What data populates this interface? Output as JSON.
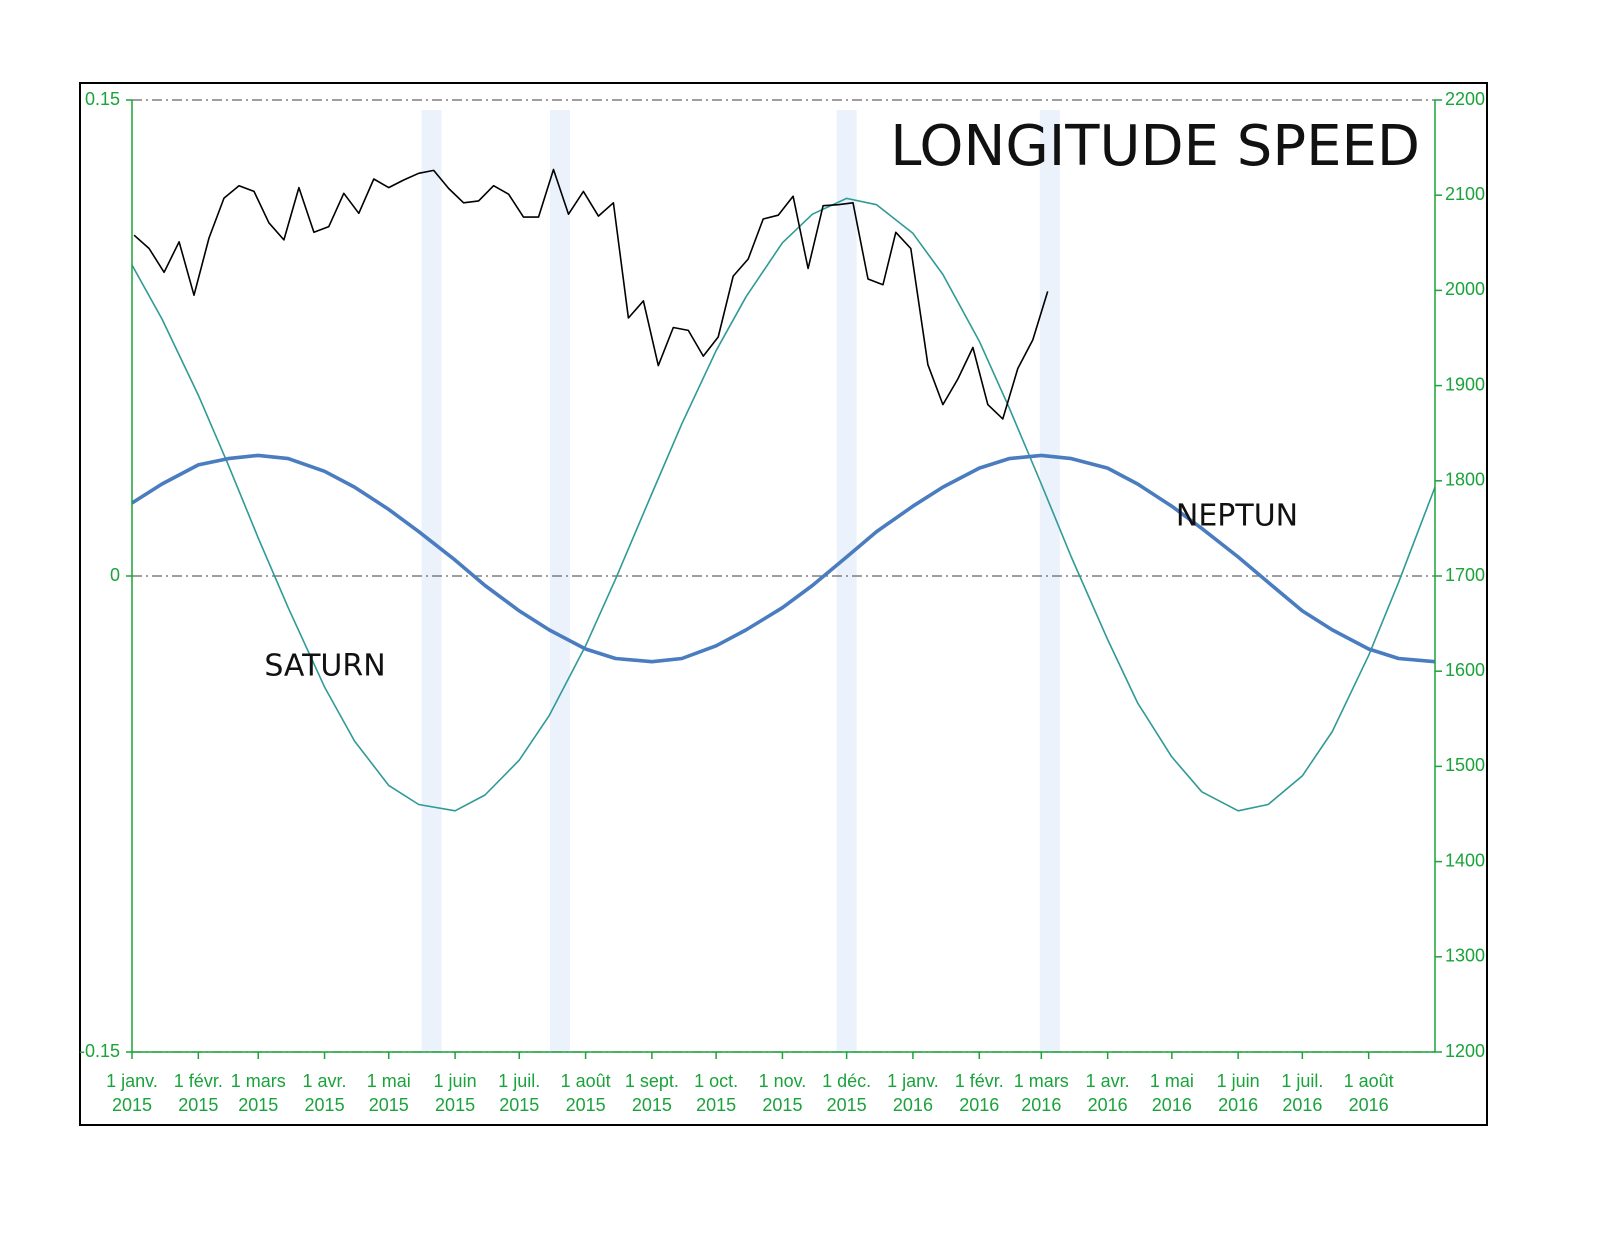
{
  "chart_data": {
    "type": "line",
    "title": "LONGITUDE SPEED",
    "xlim": [
      "2015-01-01",
      "2016-09-01"
    ],
    "xticks": [
      {
        "value": "2015-01-01",
        "label": "1 janv. 2015"
      },
      {
        "value": "2015-02-01",
        "label": "1 févr. 2015"
      },
      {
        "value": "2015-03-01",
        "label": "1 mars 2015"
      },
      {
        "value": "2015-04-01",
        "label": "1 avr. 2015"
      },
      {
        "value": "2015-05-01",
        "label": "1 mai 2015"
      },
      {
        "value": "2015-06-01",
        "label": "1 juin 2015"
      },
      {
        "value": "2015-07-01",
        "label": "1 juil. 2015"
      },
      {
        "value": "2015-08-01",
        "label": "1 août 2015"
      },
      {
        "value": "2015-09-01",
        "label": "1 sept. 2015"
      },
      {
        "value": "2015-10-01",
        "label": "1 oct. 2015"
      },
      {
        "value": "2015-11-01",
        "label": "1 nov. 2015"
      },
      {
        "value": "2015-12-01",
        "label": "1 déc. 2015"
      },
      {
        "value": "2016-01-01",
        "label": "1 janv. 2016"
      },
      {
        "value": "2016-02-01",
        "label": "1 févr. 2016"
      },
      {
        "value": "2016-03-01",
        "label": "1 mars 2016"
      },
      {
        "value": "2016-04-01",
        "label": "1 avr. 2016"
      },
      {
        "value": "2016-05-01",
        "label": "1 mai 2016"
      },
      {
        "value": "2016-06-01",
        "label": "1 juin 2016"
      },
      {
        "value": "2016-07-01",
        "label": "1 juil. 2016"
      },
      {
        "value": "2016-08-01",
        "label": "1 août 2016"
      }
    ],
    "ylim": [
      -0.15,
      0.15
    ],
    "yticks": [
      -0.15,
      0,
      0.15
    ],
    "y2lim": [
      1200,
      2200
    ],
    "y2ticks": [
      1200,
      1300,
      1400,
      1500,
      1600,
      1700,
      1800,
      1900,
      2000,
      2100,
      2200
    ],
    "grid": true,
    "axis_color": "#1aa33a",
    "highlight_dates": [
      "2015-05-21",
      "2015-07-20",
      "2015-12-01",
      "2016-03-05"
    ],
    "x": [
      "2015-01-01",
      "2015-01-15",
      "2015-02-01",
      "2015-02-15",
      "2015-03-01",
      "2015-03-15",
      "2015-04-01",
      "2015-04-15",
      "2015-05-01",
      "2015-05-15",
      "2015-06-01",
      "2015-06-15",
      "2015-07-01",
      "2015-07-15",
      "2015-08-01",
      "2015-08-15",
      "2015-09-01",
      "2015-09-15",
      "2015-10-01",
      "2015-10-15",
      "2015-11-01",
      "2015-11-15",
      "2015-12-01",
      "2015-12-15",
      "2016-01-01",
      "2016-01-15",
      "2016-02-01",
      "2016-02-15",
      "2016-03-01",
      "2016-03-15",
      "2016-04-01",
      "2016-04-15",
      "2016-05-01",
      "2016-05-15",
      "2016-06-01",
      "2016-06-15",
      "2016-07-01",
      "2016-07-15",
      "2016-08-01",
      "2016-08-15",
      "2016-09-01"
    ],
    "series": [
      {
        "name": "SATURN",
        "color": "#2f9a96",
        "values": [
          0.098,
          0.081,
          0.057,
          0.035,
          0.012,
          -0.01,
          -0.035,
          -0.052,
          -0.066,
          -0.072,
          -0.074,
          -0.069,
          -0.058,
          -0.044,
          -0.022,
          -0.001,
          0.026,
          0.048,
          0.071,
          0.088,
          0.105,
          0.114,
          0.119,
          0.117,
          0.108,
          0.095,
          0.074,
          0.053,
          0.029,
          0.006,
          -0.02,
          -0.04,
          -0.057,
          -0.068,
          -0.074,
          -0.072,
          -0.063,
          -0.049,
          -0.025,
          -0.002,
          0.028
        ]
      },
      {
        "name": "NEPTUN",
        "color": "#4a7cc0",
        "values": [
          0.023,
          0.029,
          0.035,
          0.037,
          0.038,
          0.037,
          0.033,
          0.028,
          0.021,
          0.014,
          0.005,
          -0.003,
          -0.011,
          -0.017,
          -0.023,
          -0.026,
          -0.027,
          -0.026,
          -0.022,
          -0.017,
          -0.01,
          -0.003,
          0.006,
          0.014,
          0.022,
          0.028,
          0.034,
          0.037,
          0.038,
          0.037,
          0.034,
          0.029,
          0.022,
          0.015,
          0.006,
          -0.002,
          -0.011,
          -0.017,
          -0.023,
          -0.026,
          -0.027
        ]
      },
      {
        "color": "#000000",
        "axis": "y2",
        "x": [
          "2015-01-02",
          "2015-01-09",
          "2015-01-16",
          "2015-01-23",
          "2015-01-30",
          "2015-02-06",
          "2015-02-13",
          "2015-02-20",
          "2015-02-27",
          "2015-03-06",
          "2015-03-13",
          "2015-03-20",
          "2015-03-27",
          "2015-04-03",
          "2015-04-10",
          "2015-04-17",
          "2015-04-24",
          "2015-05-01",
          "2015-05-08",
          "2015-05-15",
          "2015-05-22",
          "2015-05-29",
          "2015-06-05",
          "2015-06-12",
          "2015-06-19",
          "2015-06-26",
          "2015-07-03",
          "2015-07-10",
          "2015-07-17",
          "2015-07-24",
          "2015-07-31",
          "2015-08-07",
          "2015-08-14",
          "2015-08-21",
          "2015-08-28",
          "2015-09-04",
          "2015-09-11",
          "2015-09-18",
          "2015-09-25",
          "2015-10-02",
          "2015-10-09",
          "2015-10-16",
          "2015-10-23",
          "2015-10-30",
          "2015-11-06",
          "2015-11-13",
          "2015-11-20",
          "2015-11-27",
          "2015-12-04",
          "2015-12-11",
          "2015-12-18",
          "2015-12-24",
          "2015-12-31",
          "2016-01-08",
          "2016-01-15",
          "2016-01-22",
          "2016-01-29",
          "2016-02-05",
          "2016-02-12",
          "2016-02-19",
          "2016-02-26",
          "2016-03-04"
        ],
        "values": [
          2058,
          2044,
          2019,
          2051,
          1995,
          2055,
          2097,
          2110,
          2104,
          2071,
          2053,
          2108,
          2061,
          2067,
          2102,
          2081,
          2117,
          2108,
          2116,
          2123,
          2126,
          2107,
          2092,
          2094,
          2110,
          2101,
          2077,
          2077,
          2127,
          2080,
          2104,
          2078,
          2092,
          1971,
          1989,
          1921,
          1961,
          1958,
          1931,
          1951,
          2015,
          2033,
          2075,
          2079,
          2099,
          2023,
          2089,
          2090,
          2092,
          2012,
          2006,
          2061,
          2044,
          1922,
          1880,
          1907,
          1940,
          1880,
          1865,
          1918,
          1948,
          1999
        ]
      }
    ]
  }
}
